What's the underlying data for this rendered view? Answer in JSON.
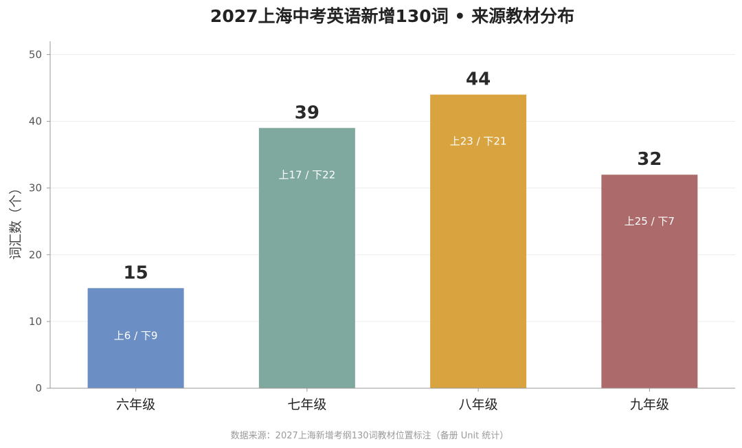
{
  "chart_data": {
    "type": "bar",
    "title": "2027上海中考英语新增130词 • 来源教材分布",
    "ylabel": "词汇数（个）",
    "xlabel": "",
    "ylim": [
      0,
      52
    ],
    "yticks": [
      0,
      10,
      20,
      30,
      40,
      50
    ],
    "grid": true,
    "categories": [
      "六年级",
      "七年级",
      "八年级",
      "九年级"
    ],
    "values": [
      15,
      39,
      44,
      32
    ],
    "breakdown": [
      "上6 / 下9",
      "上17 / 下22",
      "上23 / 下21",
      "上25 / 下7"
    ],
    "colors": [
      "#6b8fc4",
      "#7fa89e",
      "#d9a43f",
      "#ad6a6a"
    ],
    "source": "数据来源：2027上海新增考纲130词教材位置标注（备册 Unit 统计）"
  }
}
